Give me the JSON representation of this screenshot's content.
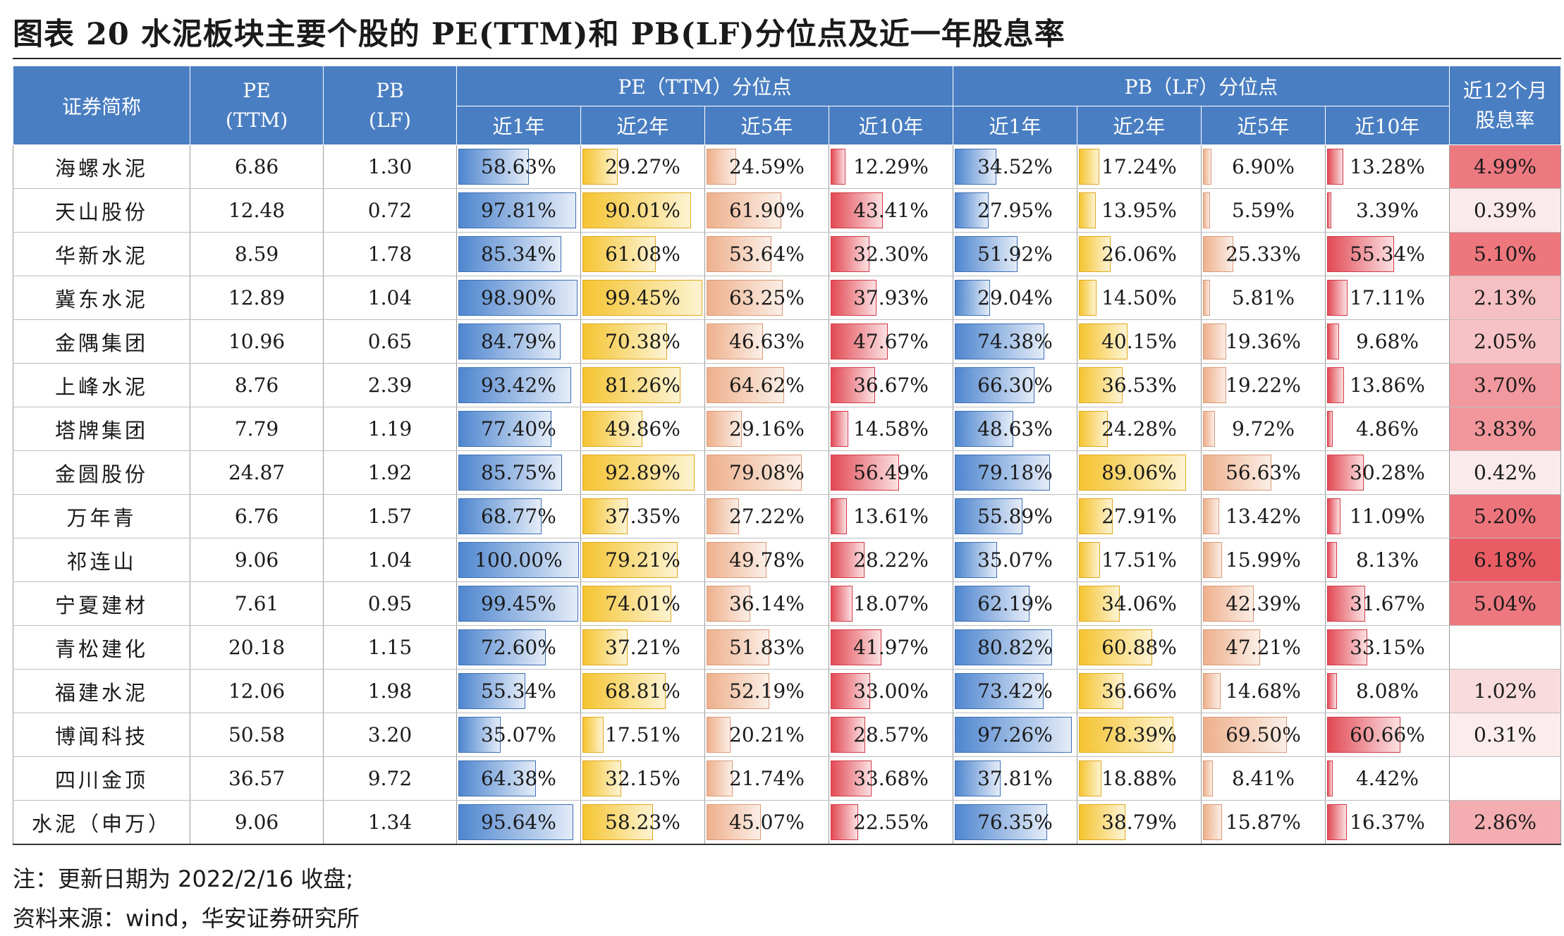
{
  "title": "图表 20  水泥板块主要个股的 PE(TTM)和 PB(LF)分位点及近一年股息率",
  "headers": {
    "name": "证券简称",
    "pe_line1": "PE",
    "pe_line2": "(TTM)",
    "pb_line1": "PB",
    "pb_line2": "(LF)",
    "pe_group": "PE（TTM）分位点",
    "pb_group": "PB（LF）分位点",
    "yield_line1": "近12个月",
    "yield_line2": "股息率",
    "periods": [
      "近1年",
      "近2年",
      "近5年",
      "近10年"
    ]
  },
  "colors": {
    "header_bg": "#4a7ec2",
    "bar_pe_1y": "#4f86cf",
    "bar_pe_2y": "#f5c430",
    "bar_pe_5y": "#eeb08c",
    "bar_pe_10y": "#e24a54",
    "yield_scale_high": "#ea5c64",
    "yield_scale_low": "#fbe6e7"
  },
  "rows": [
    {
      "name": "海螺水泥",
      "pe": "6.86",
      "pb": "1.30",
      "pe_pct": [
        "58.63%",
        "29.27%",
        "24.59%",
        "12.29%"
      ],
      "pb_pct": [
        "34.52%",
        "17.24%",
        "6.90%",
        "13.28%"
      ],
      "yield": "4.99%"
    },
    {
      "name": "天山股份",
      "pe": "12.48",
      "pb": "0.72",
      "pe_pct": [
        "97.81%",
        "90.01%",
        "61.90%",
        "43.41%"
      ],
      "pb_pct": [
        "27.95%",
        "13.95%",
        "5.59%",
        "3.39%"
      ],
      "yield": "0.39%"
    },
    {
      "name": "华新水泥",
      "pe": "8.59",
      "pb": "1.78",
      "pe_pct": [
        "85.34%",
        "61.08%",
        "53.64%",
        "32.30%"
      ],
      "pb_pct": [
        "51.92%",
        "26.06%",
        "25.33%",
        "55.34%"
      ],
      "yield": "5.10%"
    },
    {
      "name": "冀东水泥",
      "pe": "12.89",
      "pb": "1.04",
      "pe_pct": [
        "98.90%",
        "99.45%",
        "63.25%",
        "37.93%"
      ],
      "pb_pct": [
        "29.04%",
        "14.50%",
        "5.81%",
        "17.11%"
      ],
      "yield": "2.13%"
    },
    {
      "name": "金隅集团",
      "pe": "10.96",
      "pb": "0.65",
      "pe_pct": [
        "84.79%",
        "70.38%",
        "46.63%",
        "47.67%"
      ],
      "pb_pct": [
        "74.38%",
        "40.15%",
        "19.36%",
        "9.68%"
      ],
      "yield": "2.05%"
    },
    {
      "name": "上峰水泥",
      "pe": "8.76",
      "pb": "2.39",
      "pe_pct": [
        "93.42%",
        "81.26%",
        "64.62%",
        "36.67%"
      ],
      "pb_pct": [
        "66.30%",
        "36.53%",
        "19.22%",
        "13.86%"
      ],
      "yield": "3.70%"
    },
    {
      "name": "塔牌集团",
      "pe": "7.79",
      "pb": "1.19",
      "pe_pct": [
        "77.40%",
        "49.86%",
        "29.16%",
        "14.58%"
      ],
      "pb_pct": [
        "48.63%",
        "24.28%",
        "9.72%",
        "4.86%"
      ],
      "yield": "3.83%"
    },
    {
      "name": "金圆股份",
      "pe": "24.87",
      "pb": "1.92",
      "pe_pct": [
        "85.75%",
        "92.89%",
        "79.08%",
        "56.49%"
      ],
      "pb_pct": [
        "79.18%",
        "89.06%",
        "56.63%",
        "30.28%"
      ],
      "yield": "0.42%"
    },
    {
      "name": "万年青",
      "pe": "6.76",
      "pb": "1.57",
      "pe_pct": [
        "68.77%",
        "37.35%",
        "27.22%",
        "13.61%"
      ],
      "pb_pct": [
        "55.89%",
        "27.91%",
        "13.42%",
        "11.09%"
      ],
      "yield": "5.20%"
    },
    {
      "name": "祁连山",
      "pe": "9.06",
      "pb": "1.04",
      "pe_pct": [
        "100.00%",
        "79.21%",
        "49.78%",
        "28.22%"
      ],
      "pb_pct": [
        "35.07%",
        "17.51%",
        "15.99%",
        "8.13%"
      ],
      "yield": "6.18%"
    },
    {
      "name": "宁夏建材",
      "pe": "7.61",
      "pb": "0.95",
      "pe_pct": [
        "99.45%",
        "74.01%",
        "36.14%",
        "18.07%"
      ],
      "pb_pct": [
        "62.19%",
        "34.06%",
        "42.39%",
        "31.67%"
      ],
      "yield": "5.04%"
    },
    {
      "name": "青松建化",
      "pe": "20.18",
      "pb": "1.15",
      "pe_pct": [
        "72.60%",
        "37.21%",
        "51.83%",
        "41.97%"
      ],
      "pb_pct": [
        "80.82%",
        "60.88%",
        "47.21%",
        "33.15%"
      ],
      "yield": ""
    },
    {
      "name": "福建水泥",
      "pe": "12.06",
      "pb": "1.98",
      "pe_pct": [
        "55.34%",
        "68.81%",
        "52.19%",
        "33.00%"
      ],
      "pb_pct": [
        "73.42%",
        "36.66%",
        "14.68%",
        "8.08%"
      ],
      "yield": "1.02%"
    },
    {
      "name": "博闻科技",
      "pe": "50.58",
      "pb": "3.20",
      "pe_pct": [
        "35.07%",
        "17.51%",
        "20.21%",
        "28.57%"
      ],
      "pb_pct": [
        "97.26%",
        "78.39%",
        "69.50%",
        "60.66%"
      ],
      "yield": "0.31%"
    },
    {
      "name": "四川金顶",
      "pe": "36.57",
      "pb": "9.72",
      "pe_pct": [
        "64.38%",
        "32.15%",
        "21.74%",
        "33.68%"
      ],
      "pb_pct": [
        "37.81%",
        "18.88%",
        "8.41%",
        "4.42%"
      ],
      "yield": ""
    },
    {
      "name": "水泥（申万）",
      "pe": "9.06",
      "pb": "1.34",
      "pe_pct": [
        "95.64%",
        "58.23%",
        "45.07%",
        "22.55%"
      ],
      "pb_pct": [
        "76.35%",
        "38.79%",
        "15.87%",
        "16.37%"
      ],
      "yield": "2.86%"
    }
  ],
  "note": "注：更新日期为 2022/2/16 收盘;",
  "source": "资料来源：wind，华安证券研究所"
}
